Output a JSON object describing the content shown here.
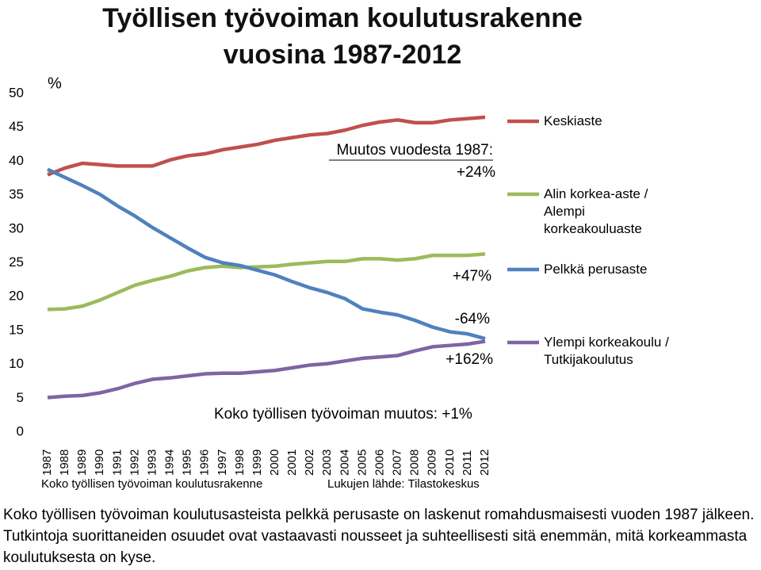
{
  "chart_data": {
    "type": "line",
    "title": "Työllisen työvoiman koulutusrakenne vuosina 1987-2012",
    "y_label": "%",
    "categories": [
      "1987",
      "1988",
      "1989",
      "1990",
      "1991",
      "1992",
      "1993",
      "1994",
      "1995",
      "1996",
      "1997",
      "1998",
      "1999",
      "2000",
      "2001",
      "2002",
      "2003",
      "2004",
      "2005",
      "2006",
      "2007",
      "2008",
      "2009",
      "2010",
      "2011",
      "2012"
    ],
    "series": [
      {
        "name": "Keskiaste",
        "color": "#c0504d",
        "values": [
          38.0,
          39.0,
          39.7,
          39.5,
          39.3,
          39.3,
          39.3,
          40.2,
          40.8,
          41.1,
          41.7,
          42.1,
          42.5,
          43.1,
          43.5,
          43.9,
          44.1,
          44.6,
          45.3,
          45.8,
          46.1,
          45.7,
          45.7,
          46.1,
          46.3,
          46.5
        ]
      },
      {
        "name": "Alin korkea-aste / Alempi korkeakouluaste",
        "color": "#9bbb59",
        "values": [
          18.1,
          18.2,
          18.6,
          19.5,
          20.6,
          21.7,
          22.4,
          23.0,
          23.8,
          24.3,
          24.5,
          24.3,
          24.4,
          24.5,
          24.8,
          25.0,
          25.2,
          25.2,
          25.6,
          25.6,
          25.4,
          25.6,
          26.1,
          26.1,
          26.1,
          26.3
        ]
      },
      {
        "name": "Pelkkä perusaste",
        "color": "#4f81bd",
        "values": [
          38.8,
          37.6,
          36.4,
          35.1,
          33.4,
          31.9,
          30.2,
          28.7,
          27.2,
          25.8,
          25.0,
          24.6,
          23.9,
          23.2,
          22.2,
          21.3,
          20.6,
          19.7,
          18.2,
          17.7,
          17.3,
          16.5,
          15.5,
          14.8,
          14.5,
          13.8
        ]
      },
      {
        "name": "Ylempi korkeakoulu / Tutkijakoulutus",
        "color": "#8064a2",
        "values": [
          5.1,
          5.3,
          5.4,
          5.8,
          6.4,
          7.2,
          7.8,
          8.0,
          8.3,
          8.6,
          8.7,
          8.7,
          8.9,
          9.1,
          9.5,
          9.9,
          10.1,
          10.5,
          10.9,
          11.1,
          11.3,
          12.0,
          12.6,
          12.8,
          13.0,
          13.4
        ]
      }
    ],
    "ylim": [
      0,
      50
    ],
    "yticks": [
      0,
      5,
      10,
      15,
      20,
      25,
      30,
      35,
      40,
      45,
      50
    ],
    "grid": false,
    "annotations": [
      "Muutos vuodesta 1987:",
      "+24%",
      "+47%",
      "-64%",
      "+162%",
      "Koko työllisen työvoiman muutos: +1%"
    ],
    "footnotes": [
      "Koko työllisen työvoiman koulutusrakenne",
      "Lukujen lähde: Tilastokeskus"
    ]
  },
  "caption": "Koko työllisen työvoiman koulutusasteista pelkkä perusaste on laskenut romahdusmaisesti vuoden 1987 jälkeen. Tutkintoja suorittaneiden osuudet ovat vastaavasti nousseet ja suhteellisesti sitä enemmän, mitä korkeammasta koulutuksesta on kyse."
}
